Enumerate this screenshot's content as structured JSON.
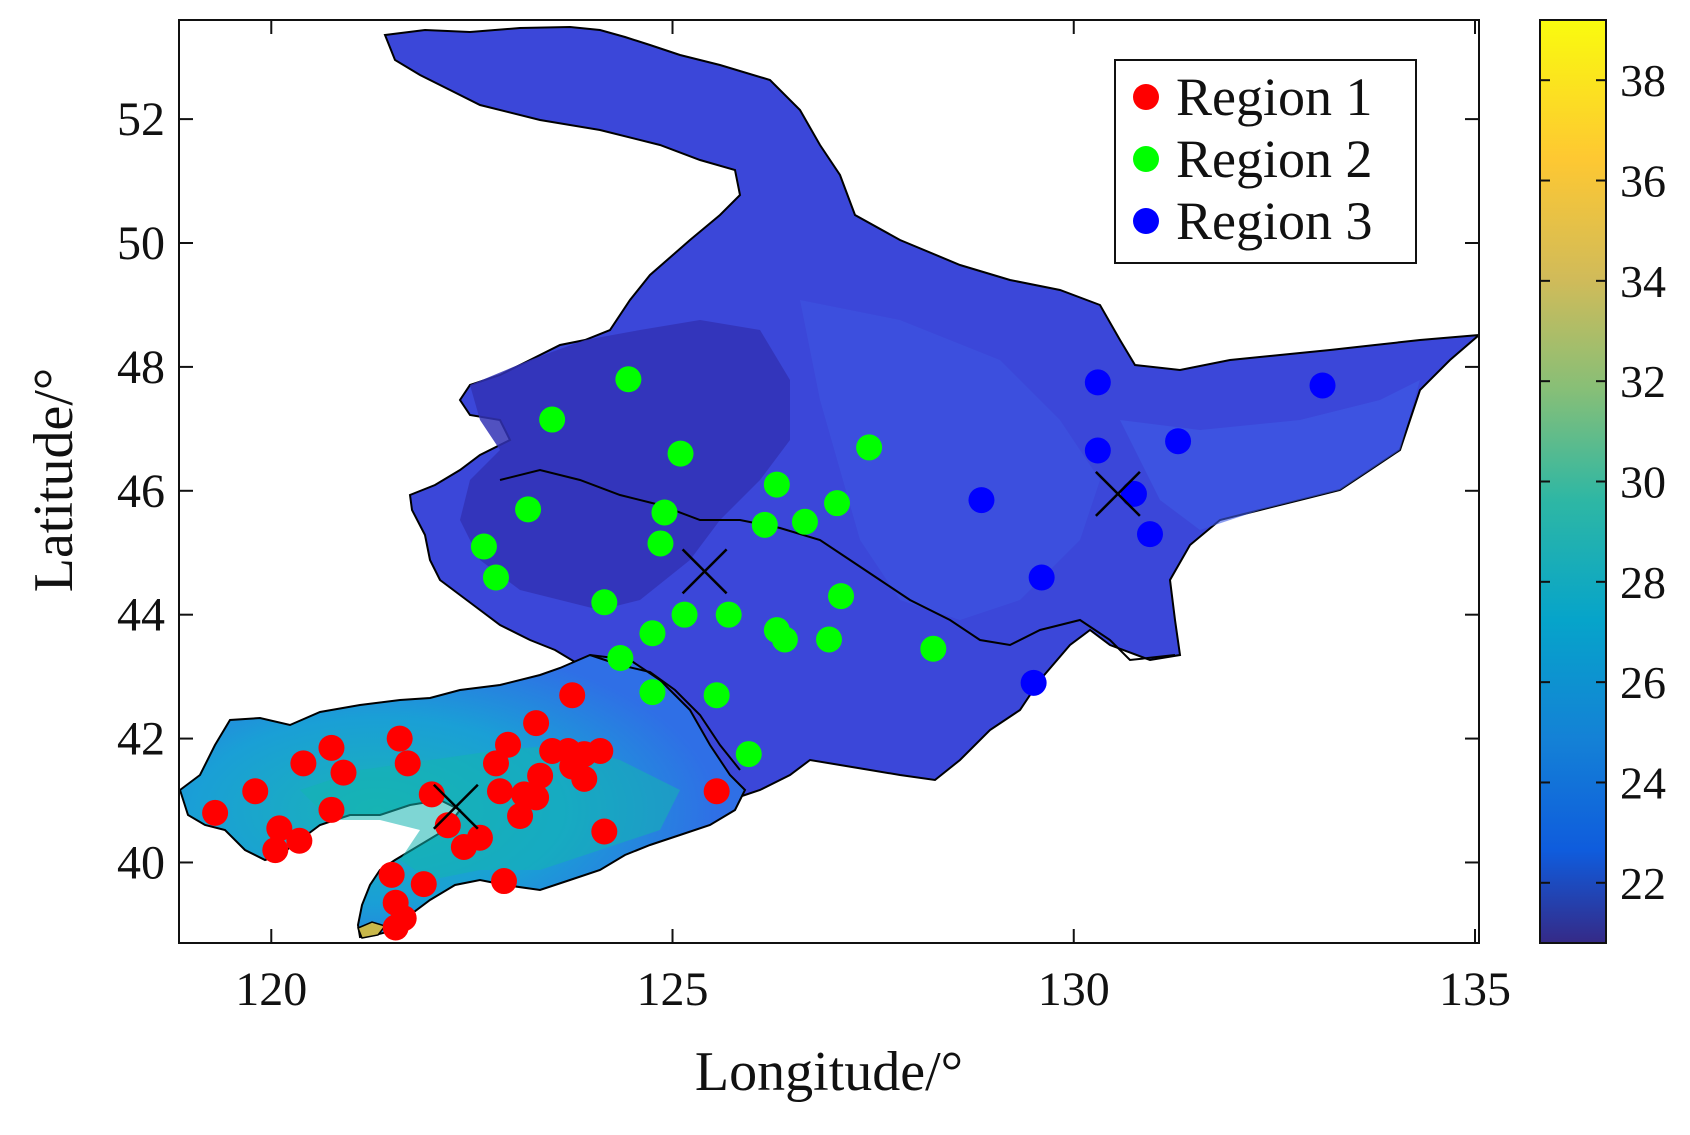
{
  "chart_data": {
    "type": "scatter",
    "title": "",
    "xlabel": "Longitude/°",
    "ylabel": "Latitude/°",
    "xlim": [
      118.85,
      135.05
    ],
    "ylim": [
      38.7,
      53.6
    ],
    "xticks": [
      120,
      125,
      130,
      135
    ],
    "yticks": [
      40,
      42,
      44,
      46,
      48,
      50,
      52
    ],
    "grid": false,
    "background_field": "filled contour map of a continuous variable (about 21-24 over the north, rising to about 27-30 in the south-west and about 37 at the southern tip)",
    "colorbar": {
      "range": [
        20.8,
        39.2
      ],
      "ticks": [
        22,
        24,
        26,
        28,
        30,
        32,
        34,
        36,
        38
      ],
      "colormap": "parula"
    },
    "legend": {
      "position": "top-right",
      "entries": [
        "Region 1",
        "Region 2",
        "Region 3"
      ]
    },
    "series": [
      {
        "name": "Region 1",
        "color": "#ff0000",
        "points": [
          [
            119.3,
            40.8
          ],
          [
            119.8,
            41.15
          ],
          [
            120.1,
            40.55
          ],
          [
            120.35,
            40.35
          ],
          [
            120.05,
            40.2
          ],
          [
            120.4,
            41.6
          ],
          [
            120.75,
            41.85
          ],
          [
            120.9,
            41.45
          ],
          [
            120.75,
            40.85
          ],
          [
            121.6,
            42.0
          ],
          [
            121.7,
            41.6
          ],
          [
            121.5,
            39.8
          ],
          [
            121.55,
            39.35
          ],
          [
            121.65,
            39.1
          ],
          [
            121.55,
            38.95
          ],
          [
            121.9,
            39.65
          ],
          [
            122.0,
            41.1
          ],
          [
            122.2,
            40.6
          ],
          [
            122.4,
            40.25
          ],
          [
            122.6,
            40.4
          ],
          [
            122.8,
            41.6
          ],
          [
            122.85,
            41.15
          ],
          [
            122.95,
            41.9
          ],
          [
            123.1,
            40.75
          ],
          [
            123.15,
            41.1
          ],
          [
            122.9,
            39.7
          ],
          [
            123.3,
            41.05
          ],
          [
            123.35,
            41.4
          ],
          [
            123.3,
            42.25
          ],
          [
            123.5,
            41.8
          ],
          [
            123.7,
            41.8
          ],
          [
            123.9,
            41.75
          ],
          [
            123.75,
            41.55
          ],
          [
            123.9,
            41.35
          ],
          [
            123.75,
            42.7
          ],
          [
            124.1,
            41.8
          ],
          [
            124.15,
            40.5
          ],
          [
            125.55,
            41.15
          ]
        ]
      },
      {
        "name": "Region 2",
        "color": "#00ff00",
        "points": [
          [
            124.45,
            47.8
          ],
          [
            123.5,
            47.15
          ],
          [
            125.1,
            46.6
          ],
          [
            127.45,
            46.7
          ],
          [
            123.2,
            45.7
          ],
          [
            124.9,
            45.65
          ],
          [
            126.3,
            46.1
          ],
          [
            127.05,
            45.8
          ],
          [
            126.65,
            45.5
          ],
          [
            126.15,
            45.45
          ],
          [
            124.85,
            45.15
          ],
          [
            122.65,
            45.1
          ],
          [
            122.8,
            44.6
          ],
          [
            124.15,
            44.2
          ],
          [
            125.15,
            44.0
          ],
          [
            125.7,
            44.0
          ],
          [
            127.1,
            44.3
          ],
          [
            124.75,
            43.7
          ],
          [
            126.3,
            43.75
          ],
          [
            126.4,
            43.6
          ],
          [
            126.95,
            43.6
          ],
          [
            128.25,
            43.45
          ],
          [
            124.35,
            43.3
          ],
          [
            124.75,
            42.75
          ],
          [
            125.55,
            42.7
          ],
          [
            125.95,
            41.75
          ]
        ]
      },
      {
        "name": "Region 3",
        "color": "#0000ff",
        "points": [
          [
            130.3,
            47.75
          ],
          [
            133.1,
            47.7
          ],
          [
            130.3,
            46.65
          ],
          [
            131.3,
            46.8
          ],
          [
            128.85,
            45.85
          ],
          [
            130.75,
            45.95
          ],
          [
            130.95,
            45.3
          ],
          [
            129.6,
            44.6
          ],
          [
            129.5,
            42.9
          ]
        ]
      },
      {
        "name": "",
        "color": "#000000",
        "marker": "x",
        "points": [
          [
            122.3,
            40.9
          ],
          [
            125.4,
            44.7
          ],
          [
            130.55,
            45.95
          ]
        ]
      }
    ]
  }
}
